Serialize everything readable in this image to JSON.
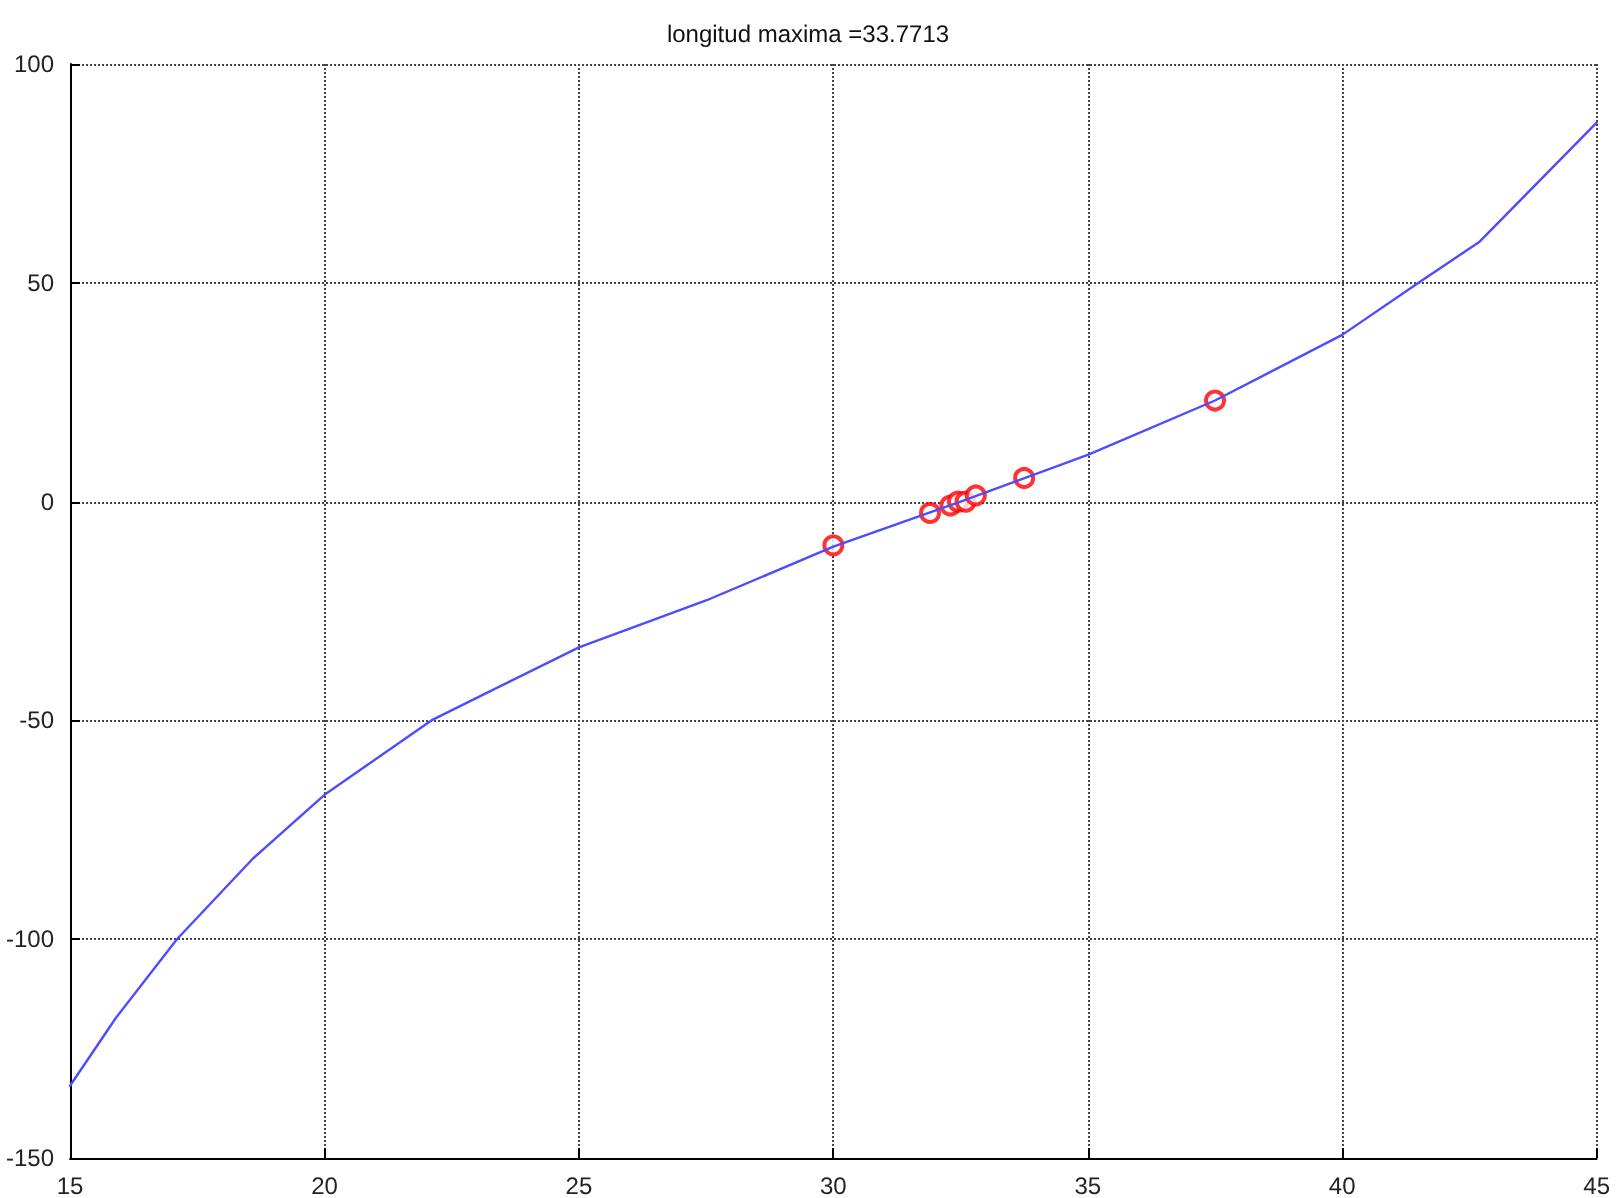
{
  "chart_data": {
    "type": "line",
    "title": "longitud maxima =33.7713",
    "xlim": [
      15,
      45
    ],
    "xticks": [
      15,
      20,
      25,
      30,
      35,
      40,
      45
    ],
    "ylim": [
      -150,
      100
    ],
    "yticks": [
      -150,
      -100,
      -50,
      0,
      50,
      100
    ],
    "grid": true,
    "series": [
      {
        "color": "#4d4dff",
        "marker": "none",
        "line_style": "solid",
        "x": [
          15,
          15.9,
          17.1,
          18.6,
          20,
          22.1,
          25,
          27.5,
          30,
          32.5,
          35,
          37.5,
          40,
          41.5,
          42.7,
          45
        ],
        "values": [
          -133.5,
          -118,
          -100,
          -81.5,
          -67,
          -50,
          -33.3,
          -22.6,
          -10.3,
          0,
          10.7,
          23.1,
          38.1,
          50,
          59.4,
          86.6
        ]
      },
      {
        "type": "scatter",
        "color": "#ff0000",
        "marker": "circle",
        "x": [
          30,
          31.9,
          32.3,
          32.45,
          32.6,
          32.8,
          33.75,
          37.5
        ],
        "values": [
          -10,
          -2.6,
          -0.9,
          0,
          0,
          1.4,
          5.4,
          23.1
        ]
      }
    ]
  }
}
